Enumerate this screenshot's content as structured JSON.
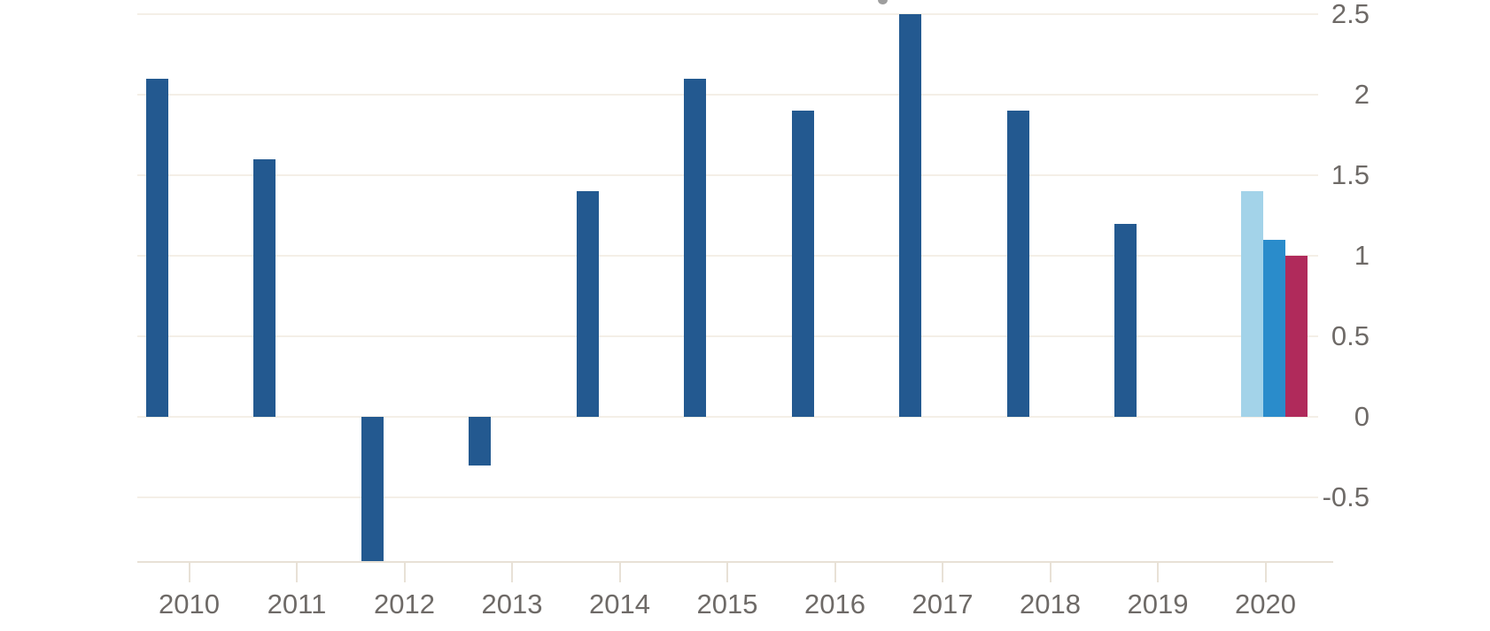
{
  "chart_data": {
    "type": "bar",
    "title": "",
    "categories": [
      "2010",
      "2011",
      "2012",
      "2013",
      "2014",
      "2015",
      "2016",
      "2017",
      "2018",
      "2019",
      "2020"
    ],
    "series": [
      {
        "name": "annual-value",
        "color": "#235990",
        "values": [
          2.1,
          1.6,
          -0.9,
          -0.3,
          1.4,
          2.1,
          1.9,
          2.5,
          1.9,
          1.2,
          null
        ]
      }
    ],
    "forecast_group": {
      "category": "2020",
      "bars": [
        {
          "name": "forecast-bar-light-blue",
          "color": "#a3d3e9",
          "value": 1.4
        },
        {
          "name": "forecast-bar-blue",
          "color": "#2a8ccb",
          "value": 1.1
        },
        {
          "name": "forecast-bar-crimson",
          "color": "#b02a5b",
          "value": 1.0
        }
      ]
    },
    "y_axis": {
      "side": "right",
      "ticks": [
        2.5,
        2,
        1.5,
        1,
        0.5,
        0,
        -0.5
      ],
      "tick_labels": [
        "2.5",
        "2",
        "1.5",
        "1",
        "0.5",
        "0",
        "-0.5"
      ],
      "ylim": [
        -0.9,
        2.5
      ]
    },
    "x_axis": {
      "tick_labels": [
        "2010",
        "2011",
        "2012",
        "2013",
        "2014",
        "2015",
        "2016",
        "2017",
        "2018",
        "2019",
        "2020"
      ]
    },
    "notes": {
      "bar_2012_clipped_at_plot_bottom": true
    },
    "grid": true,
    "legend": false,
    "colors": {
      "bar_main": "#235990",
      "forecast_light_blue": "#a3d3e9",
      "forecast_blue": "#2a8ccb",
      "forecast_crimson": "#b02a5b",
      "gridline": "#f4efe7",
      "axis": "#e8e1d6",
      "label": "#6e6a67",
      "background": "#ffffff"
    }
  }
}
